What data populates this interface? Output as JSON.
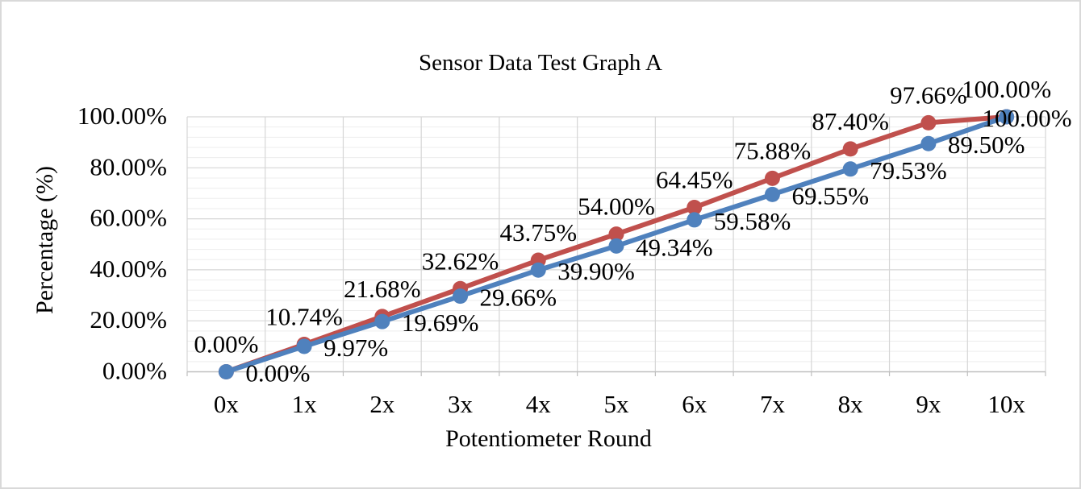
{
  "frame": {
    "background_color": "#ffffff",
    "border_color": "#d9d9d9"
  },
  "chart_data": {
    "type": "line",
    "title": "Sensor Data Test Graph A",
    "xlabel": "Potentiometer Round",
    "ylabel": "Percentage (%)",
    "categories": [
      "0x",
      "1x",
      "2x",
      "3x",
      "4x",
      "5x",
      "6x",
      "7x",
      "8x",
      "9x",
      "10x"
    ],
    "y_ticks": [
      "0.00%",
      "20.00%",
      "40.00%",
      "60.00%",
      "80.00%",
      "100.00%"
    ],
    "ylim": [
      0,
      100
    ],
    "grid": {
      "horizontal_major_step": 20,
      "horizontal_minor_step": 4,
      "vertical_between_categories": true,
      "major_color": "#d6d6d6",
      "minor_color": "#ededed",
      "axis_color": "#bfbfbf"
    },
    "legend": "none",
    "series": [
      {
        "color": "#C0504D",
        "marker": "circle",
        "label_position": "above",
        "values": [
          0.0,
          10.74,
          21.68,
          32.62,
          43.75,
          54.0,
          64.45,
          75.88,
          87.4,
          97.66,
          100.0
        ],
        "labels": [
          "0.00%",
          "10.74%",
          "21.68%",
          "32.62%",
          "43.75%",
          "54.00%",
          "64.45%",
          "75.88%",
          "87.40%",
          "97.66%",
          "100.00%"
        ]
      },
      {
        "color": "#4F81BD",
        "marker": "circle",
        "label_position": "right",
        "values": [
          0.0,
          9.97,
          19.69,
          29.66,
          39.9,
          49.34,
          59.58,
          69.55,
          79.53,
          89.5,
          100.0
        ],
        "labels": [
          "0.00%",
          "9.97%",
          "19.69%",
          "29.66%",
          "39.90%",
          "49.34%",
          "59.58%",
          "69.55%",
          "79.53%",
          "89.50%",
          "100.00%"
        ]
      }
    ]
  }
}
